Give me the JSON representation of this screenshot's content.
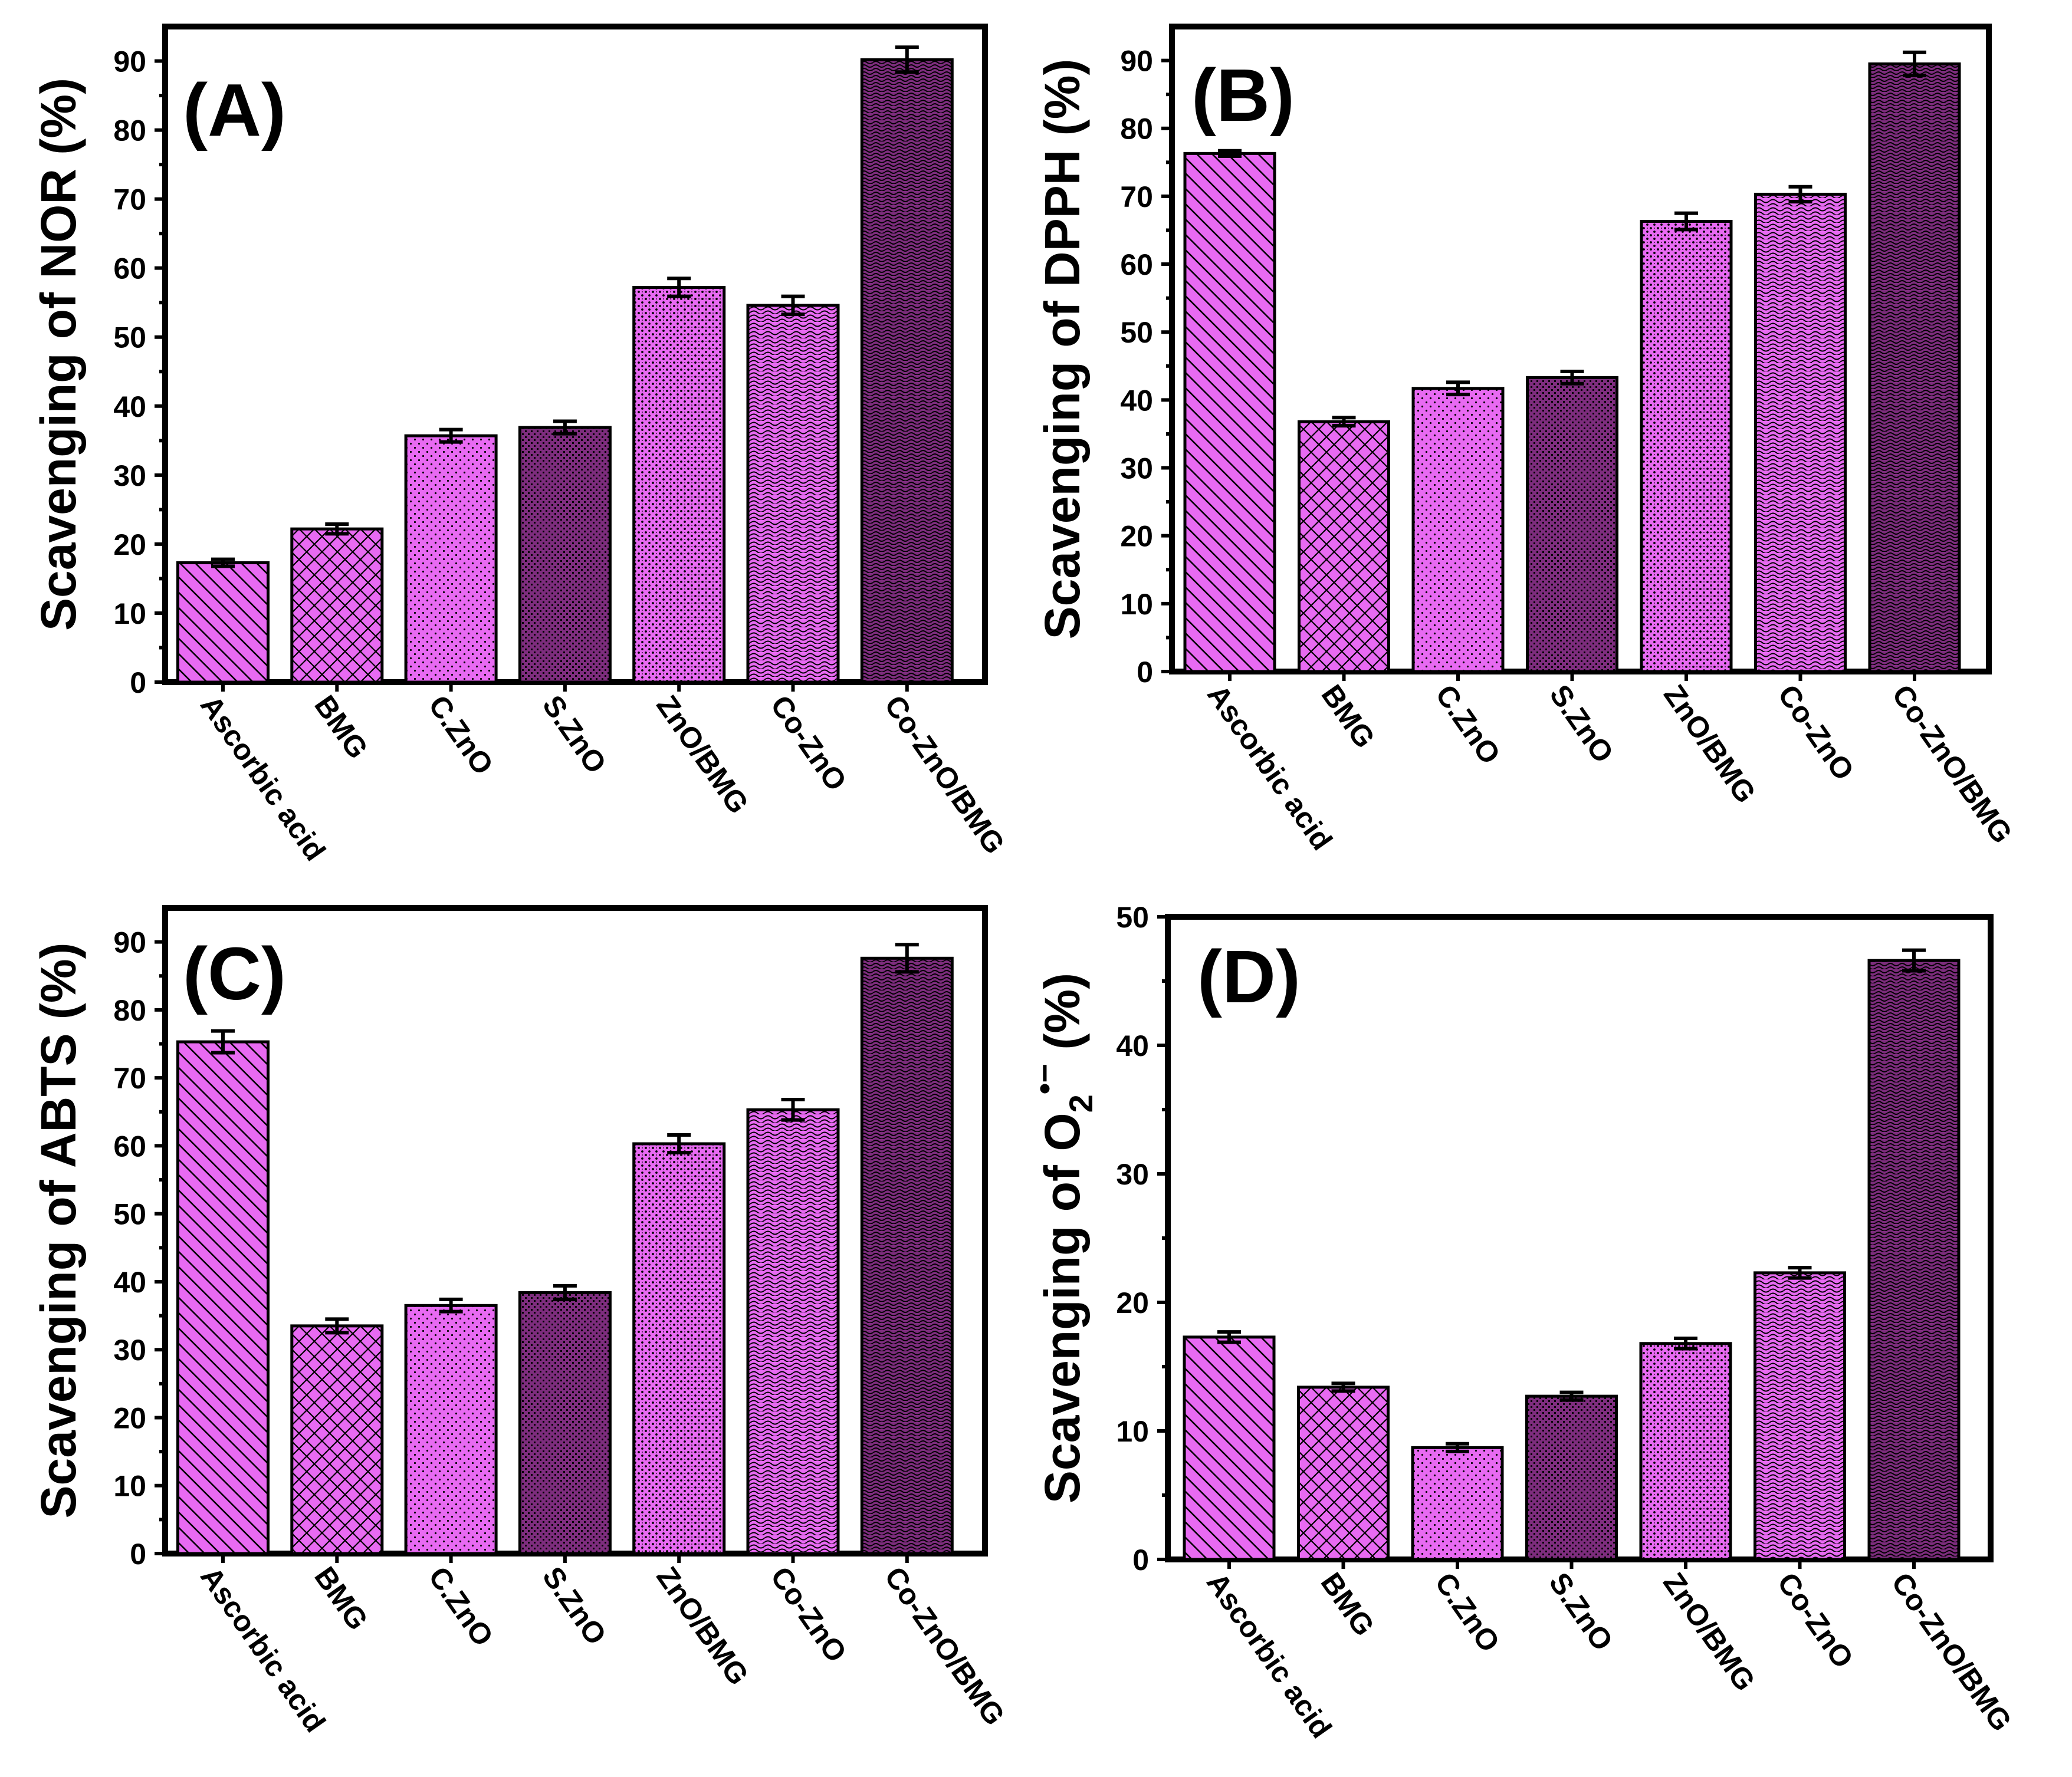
{
  "colors": {
    "light": "#e86af2",
    "dark": "#7e2d7e",
    "hatch": "#000000"
  },
  "chart_data": [
    {
      "type": "bar",
      "panel": "(A)",
      "ylabel": "Scavenging of NOR  (%)",
      "ylim": [
        0,
        95
      ],
      "yticks": [
        0,
        10,
        20,
        30,
        40,
        50,
        60,
        70,
        80,
        90
      ],
      "categories": [
        "Ascorbic acid",
        "BMG",
        "C.ZnO",
        "S.ZnO",
        "ZnO/BMG",
        "Co-ZnO",
        "Co-ZnO/BMG"
      ],
      "values": [
        17.3,
        22.2,
        35.7,
        36.9,
        57.2,
        54.6,
        90.2
      ],
      "errors": [
        0.5,
        0.7,
        0.9,
        0.9,
        1.3,
        1.3,
        1.8
      ]
    },
    {
      "type": "bar",
      "panel": "(B)",
      "ylabel": "Scavenging of DPPH  (%)",
      "ylim": [
        0,
        95
      ],
      "yticks": [
        0,
        10,
        20,
        30,
        40,
        50,
        60,
        70,
        80,
        90
      ],
      "categories": [
        "Ascorbic acid",
        "BMG",
        "C.ZnO",
        "S.ZnO",
        "ZnO/BMG",
        "Co-ZnO",
        "Co-ZnO/BMG"
      ],
      "values": [
        76.3,
        36.8,
        41.7,
        43.3,
        66.3,
        70.3,
        89.5
      ],
      "errors": [
        0.4,
        0.6,
        0.9,
        0.9,
        1.2,
        1.1,
        1.7
      ]
    },
    {
      "type": "bar",
      "panel": "(C)",
      "ylabel": "Scavenging of ABTS  (%)",
      "ylim": [
        0,
        95
      ],
      "yticks": [
        0,
        10,
        20,
        30,
        40,
        50,
        60,
        70,
        80,
        90
      ],
      "categories": [
        "Ascorbic acid",
        "BMG",
        "C.ZnO",
        "S.ZnO",
        "ZnO/BMG",
        "Co-ZnO",
        "Co-ZnO/BMG"
      ],
      "values": [
        75.3,
        33.5,
        36.5,
        38.4,
        60.3,
        65.3,
        87.6
      ],
      "errors": [
        1.6,
        1.0,
        0.9,
        1.0,
        1.3,
        1.5,
        2.0
      ]
    },
    {
      "type": "bar",
      "panel": "(D)",
      "ylabel": "Scavenging of O",
      "ylabel_sub": "2",
      "ylabel_sup": "•−",
      "ylabel_unit": "  (%)",
      "ylim": [
        0,
        50
      ],
      "yticks": [
        0,
        10,
        20,
        30,
        40,
        50
      ],
      "categories": [
        "Ascorbic acid",
        "BMG",
        "C.ZnO",
        "S.ZnO",
        "ZnO/BMG",
        "Co-ZnO",
        "Co-ZnO/BMG"
      ],
      "values": [
        17.3,
        13.4,
        8.7,
        12.7,
        16.8,
        22.3,
        46.6
      ],
      "errors": [
        0.4,
        0.3,
        0.3,
        0.3,
        0.4,
        0.4,
        0.8
      ]
    }
  ]
}
